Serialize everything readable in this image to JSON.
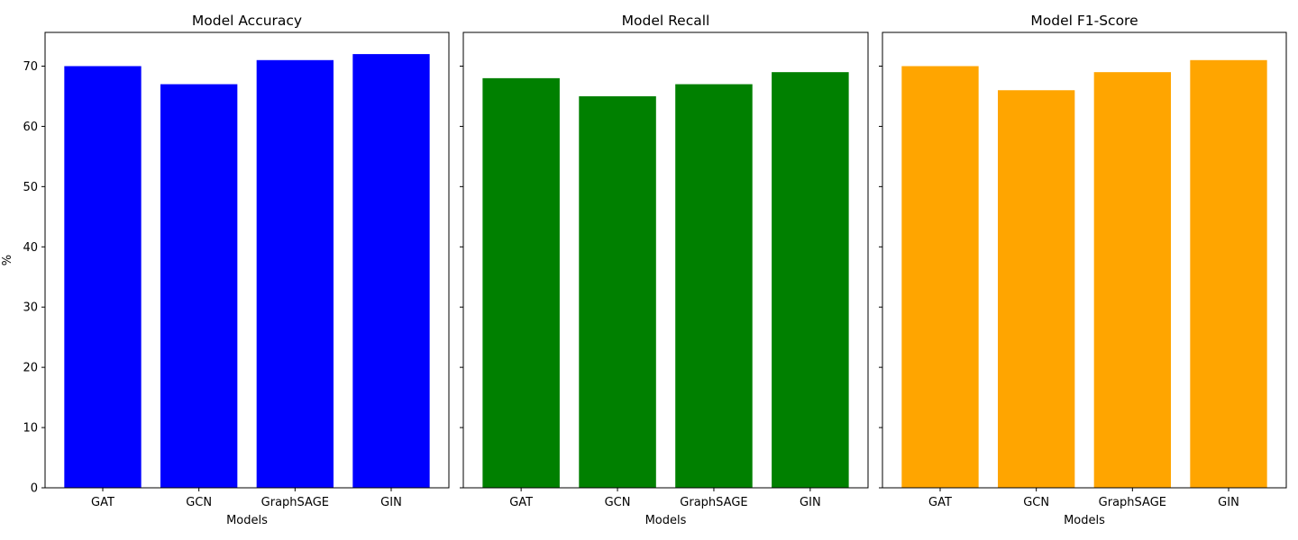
{
  "chart_data": [
    {
      "type": "bar",
      "title": "Model Accuracy",
      "xlabel": "Models",
      "ylabel": "%",
      "categories": [
        "GAT",
        "GCN",
        "GraphSAGE",
        "GIN"
      ],
      "values": [
        70,
        67,
        71,
        72
      ],
      "color": "#0000ff",
      "ylim": [
        0,
        75.6
      ],
      "yticks": [
        0,
        10,
        20,
        30,
        40,
        50,
        60,
        70
      ],
      "show_ytick_labels": true,
      "grid": false
    },
    {
      "type": "bar",
      "title": "Model Recall",
      "xlabel": "Models",
      "ylabel": "",
      "categories": [
        "GAT",
        "GCN",
        "GraphSAGE",
        "GIN"
      ],
      "values": [
        68,
        65,
        67,
        69
      ],
      "color": "#008000",
      "ylim": [
        0,
        75.6
      ],
      "yticks": [
        0,
        10,
        20,
        30,
        40,
        50,
        60,
        70
      ],
      "show_ytick_labels": false,
      "grid": false
    },
    {
      "type": "bar",
      "title": "Model F1-Score",
      "xlabel": "Models",
      "ylabel": "",
      "categories": [
        "GAT",
        "GCN",
        "GraphSAGE",
        "GIN"
      ],
      "values": [
        70,
        66,
        69,
        71
      ],
      "color": "#ffa500",
      "ylim": [
        0,
        75.6
      ],
      "yticks": [
        0,
        10,
        20,
        30,
        40,
        50,
        60,
        70
      ],
      "show_ytick_labels": false,
      "grid": false
    }
  ]
}
